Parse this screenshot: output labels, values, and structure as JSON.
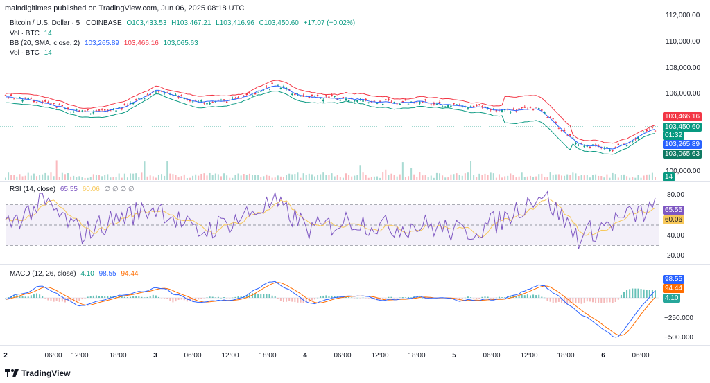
{
  "header": {
    "publisher_line": "maindigitimes published on TradingView.com, Jun 06, 2025 08:18 UTC"
  },
  "legend": {
    "symbol": "Bitcoin / U.S. Dollar · 5 · COINBASE",
    "ohlc": {
      "o": "O103,433.53",
      "h": "H103,467.21",
      "l": "L103,416.96",
      "c": "C103,450.60",
      "chg": "+17.07 (+0.02%)"
    },
    "vol1_label": "Vol · BTC",
    "vol1_value": "14",
    "bb_label": "BB (20, SMA, close, 2)",
    "bb_basis": "103,265.89",
    "bb_upper": "103,466.16",
    "bb_lower": "103,065.63",
    "vol2_label": "Vol · BTC",
    "vol2_value": "14",
    "rsi_label": "RSI (14, close)",
    "rsi_value": "65.55",
    "rsi_ma": "60.06",
    "rsi_extra": "∅ ∅ ∅ ∅",
    "macd_label": "MACD (12, 26, close)",
    "macd_hist": "4.10",
    "macd_line": "98.55",
    "macd_signal": "94.44"
  },
  "price_axis": [
    "112,000.00",
    "110,000.00",
    "108,000.00",
    "106,000.00",
    "100,000.00"
  ],
  "price_tags": {
    "upper": "103,466.16",
    "close": "103,450.60",
    "countdown": "01:32",
    "basis": "103,265.89",
    "lower": "103,065.63",
    "volume": "14"
  },
  "rsi_axis": [
    "80.00",
    "40.00",
    "20.00"
  ],
  "rsi_tags": {
    "rsi": "65.55",
    "ma": "60.06"
  },
  "macd_axis": [
    "−250.000",
    "−500.000"
  ],
  "macd_tags": {
    "line": "98.55",
    "signal": "94.44",
    "hist": "4.10"
  },
  "time_axis": [
    "2",
    "06:00",
    "12:00",
    "18:00",
    "3",
    "06:00",
    "12:00",
    "18:00",
    "4",
    "06:00",
    "12:00",
    "18:00",
    "5",
    "06:00",
    "12:00",
    "18:00",
    "6",
    "06:00"
  ],
  "footer": {
    "brand": "TradingView"
  },
  "colors": {
    "up": "#089981",
    "down": "#f23645",
    "bb_basis": "#2962ff",
    "bb_band": "#089981",
    "rsi": "#7e57c2",
    "rsi_ma": "#f7c85a",
    "macd": "#2962ff",
    "signal": "#ff6d00"
  },
  "chart_data": [
    {
      "type": "line",
      "title": "Bitcoin / U.S. Dollar · 5 · COINBASE",
      "ylim": [
        100000,
        112000
      ],
      "x": [
        "2",
        "06:00",
        "12:00",
        "18:00",
        "3",
        "06:00",
        "12:00",
        "18:00",
        "4",
        "06:00",
        "12:00",
        "18:00",
        "5",
        "06:00",
        "12:00",
        "18:00",
        "6",
        "06:00"
      ],
      "series": [
        {
          "name": "BB (20, SMA, close, 2)",
          "values": [
            105800,
            105300,
            104500,
            104800,
            106300,
            105300,
            105500,
            106600,
            105700,
            105600,
            105300,
            105300,
            105000,
            104700,
            104800,
            102000,
            101800,
            103300
          ]
        }
      ]
    },
    {
      "type": "line",
      "title": "RSI (14, close)",
      "ylim": [
        20,
        85
      ],
      "x": [
        "2",
        "06:00",
        "12:00",
        "18:00",
        "3",
        "06:00",
        "12:00",
        "18:00",
        "4",
        "06:00",
        "12:00",
        "18:00",
        "5",
        "06:00",
        "12:00",
        "18:00",
        "6",
        "06:00"
      ],
      "series": [
        {
          "name": "RSI (14, close)",
          "values": [
            50,
            72,
            42,
            58,
            68,
            42,
            55,
            72,
            45,
            55,
            48,
            50,
            42,
            55,
            82,
            38,
            55,
            66
          ]
        }
      ]
    },
    {
      "type": "line",
      "title": "MACD (12, 26, close)",
      "ylim": [
        -560,
        300
      ],
      "x": [
        "2",
        "06:00",
        "12:00",
        "18:00",
        "3",
        "06:00",
        "12:00",
        "18:00",
        "4",
        "06:00",
        "12:00",
        "18:00",
        "5",
        "06:00",
        "12:00",
        "18:00",
        "6",
        "06:00"
      ],
      "series": [
        {
          "name": "MACD",
          "values": [
            -20,
            150,
            -120,
            30,
            140,
            -60,
            -20,
            220,
            -80,
            50,
            -40,
            20,
            -30,
            -20,
            180,
            -180,
            -520,
            98
          ]
        },
        {
          "name": "Signal",
          "values": [
            -10,
            120,
            -90,
            20,
            120,
            -40,
            -10,
            180,
            -60,
            40,
            -30,
            15,
            -20,
            -15,
            150,
            -140,
            -450,
            94
          ]
        }
      ]
    }
  ]
}
